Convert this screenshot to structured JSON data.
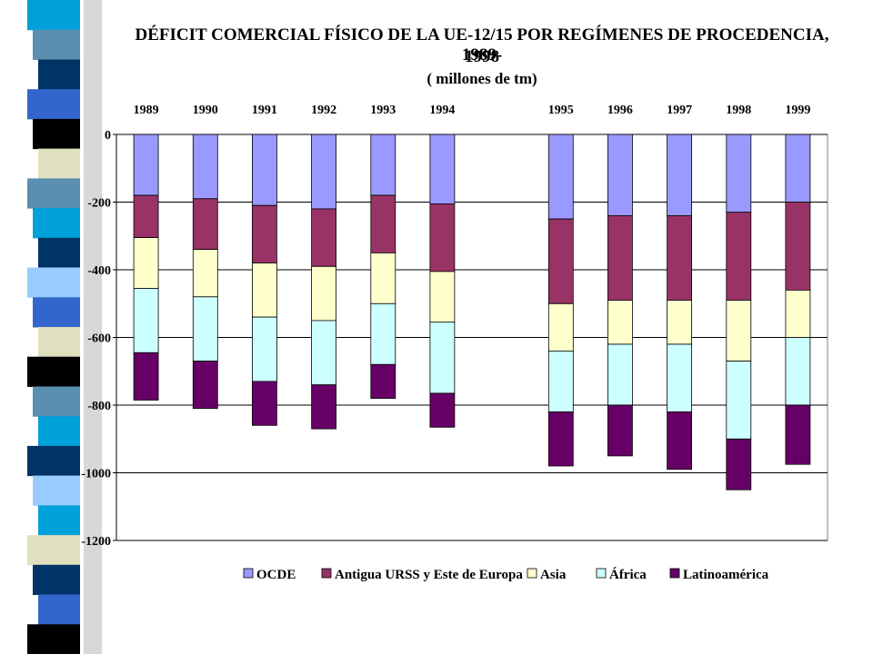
{
  "chart_data": {
    "type": "bar",
    "stacked": true,
    "title_line1": "DÉFICIT COMERCIAL FÍSICO DE LA UE-12/15 POR REGÍMENES DE PROCEDENCIA, 1989-",
    "title_line2": "1998",
    "unit": "( millones de tm)",
    "categories": [
      "1989",
      "1990",
      "1991",
      "1992",
      "1993",
      "1994",
      "",
      "1995",
      "1996",
      "1997",
      "1998",
      "1999"
    ],
    "ylim": [
      -1200,
      0
    ],
    "yticks": [
      0,
      -200,
      -400,
      -600,
      -800,
      -1000,
      -1200
    ],
    "ytick_labels": [
      "0",
      "-200",
      "-400",
      "-600",
      "-800",
      "-1000",
      "-1200"
    ],
    "grid": true,
    "legend_position": "bottom",
    "series": [
      {
        "name": "OCDE",
        "color": "#9999ff",
        "values": [
          -180,
          -190,
          -210,
          -220,
          -180,
          -205,
          null,
          -250,
          -240,
          -240,
          -230,
          -200
        ]
      },
      {
        "name": "Antigua URSS y Este de Europa",
        "color": "#993366",
        "values": [
          -125,
          -150,
          -170,
          -170,
          -170,
          -200,
          null,
          -250,
          -250,
          -250,
          -260,
          -260
        ]
      },
      {
        "name": "Asia",
        "color": "#ffffcc",
        "values": [
          -150,
          -140,
          -160,
          -160,
          -150,
          -150,
          null,
          -140,
          -130,
          -130,
          -180,
          -140
        ]
      },
      {
        "name": "África",
        "color": "#ccffff",
        "values": [
          -190,
          -190,
          -190,
          -190,
          -180,
          -210,
          null,
          -180,
          -180,
          -200,
          -230,
          -200
        ]
      },
      {
        "name": "Latinoamérica",
        "color": "#660066",
        "values": [
          -140,
          -140,
          -130,
          -130,
          -100,
          -100,
          null,
          -160,
          -150,
          -170,
          -150,
          -175
        ]
      }
    ]
  },
  "decor": {
    "stripe_colors": [
      "#00a0d8",
      "#5a8fb0",
      "#003366",
      "#3366cc",
      "#000000",
      "#e0e0c0",
      "#5a8fb0",
      "#00a0d8",
      "#003366",
      "#99ccff",
      "#3366cc",
      "#e0e0c0",
      "#000000",
      "#5a8fb0",
      "#00a0d8",
      "#003366",
      "#99ccff",
      "#00a0d8",
      "#e0e0c0",
      "#003366",
      "#3366cc",
      "#000000"
    ]
  }
}
